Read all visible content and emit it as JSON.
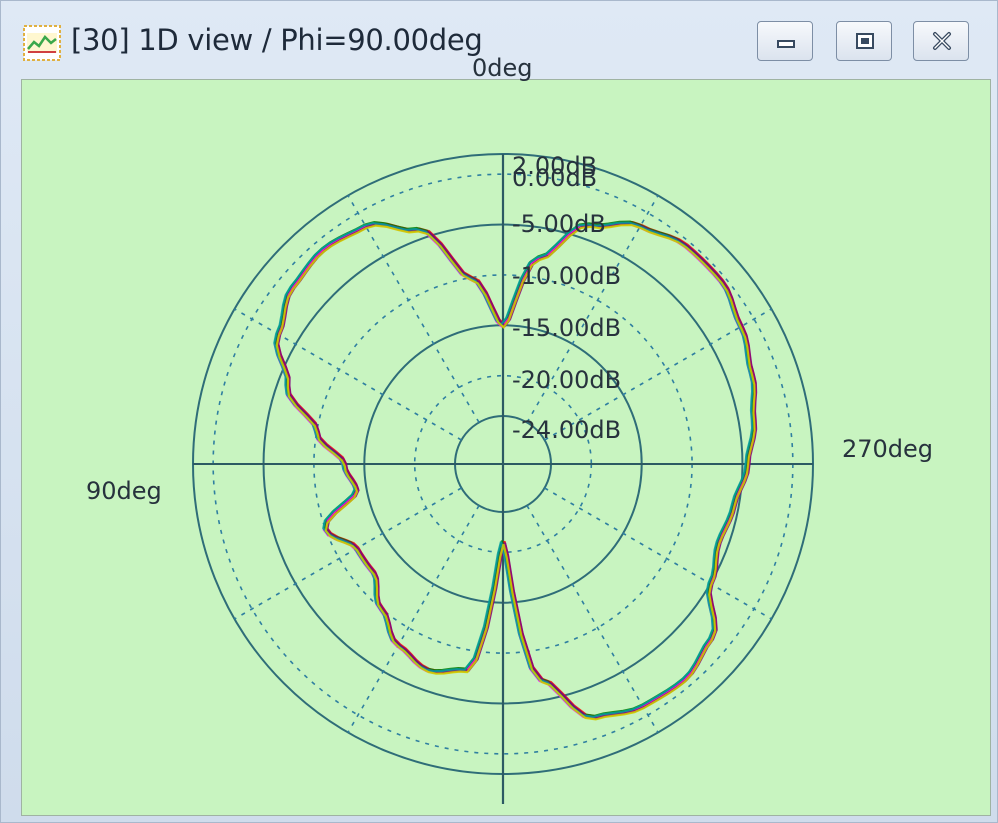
{
  "window": {
    "title": "[30] 1D view / Phi=90.00deg",
    "icons": [
      "app-chart-icon",
      "minimize-icon",
      "maximize-icon",
      "close-icon"
    ]
  },
  "chart_data": {
    "type": "polar",
    "title": "",
    "angle_labels": {
      "top": "0deg",
      "left": "90deg",
      "right": "270deg"
    },
    "radial_labels": [
      "2.00dB",
      "0.00dB",
      "-5.00dB",
      "-10.00dB",
      "-15.00dB",
      "-20.00dB",
      "-24.00dB"
    ],
    "rlim": [
      -24,
      2
    ],
    "unit": "dB",
    "angle_direction": "counterclockwise",
    "grid": true,
    "colors": {
      "background": "#c8f4c0",
      "axis": "#2c5a63",
      "ring_solid": "#2f6d78",
      "ring_dashed": "#2f7fa0",
      "series": [
        "#0000ff",
        "#ff0000",
        "#ff00ff",
        "#ffa500",
        "#008000",
        "#800080",
        "#00a0a0",
        "#cccc00"
      ]
    },
    "series": [
      {
        "angles": [
          0,
          10,
          20,
          30,
          40,
          50,
          60,
          70,
          80,
          90,
          100,
          110,
          120,
          130,
          140,
          150,
          160,
          170,
          180,
          190,
          200,
          210,
          220,
          230,
          240,
          250,
          260,
          270,
          280,
          290,
          300,
          310,
          320,
          330,
          340,
          350,
          360
        ],
        "values": [
          -15,
          -10,
          -4,
          -1.5,
          -1,
          -1.5,
          -3,
          -6,
          -10,
          -13,
          -14,
          -10,
          -12,
          -12,
          -10,
          -8,
          -7,
          -8,
          -21,
          -7,
          -2,
          -1,
          -0.8,
          -1.8,
          -5,
          -6,
          -5.5,
          -4.5,
          -3.5,
          -2.5,
          -1.5,
          -0.5,
          -0.5,
          -1.5,
          -3.5,
          -8,
          -15
        ]
      }
    ]
  }
}
